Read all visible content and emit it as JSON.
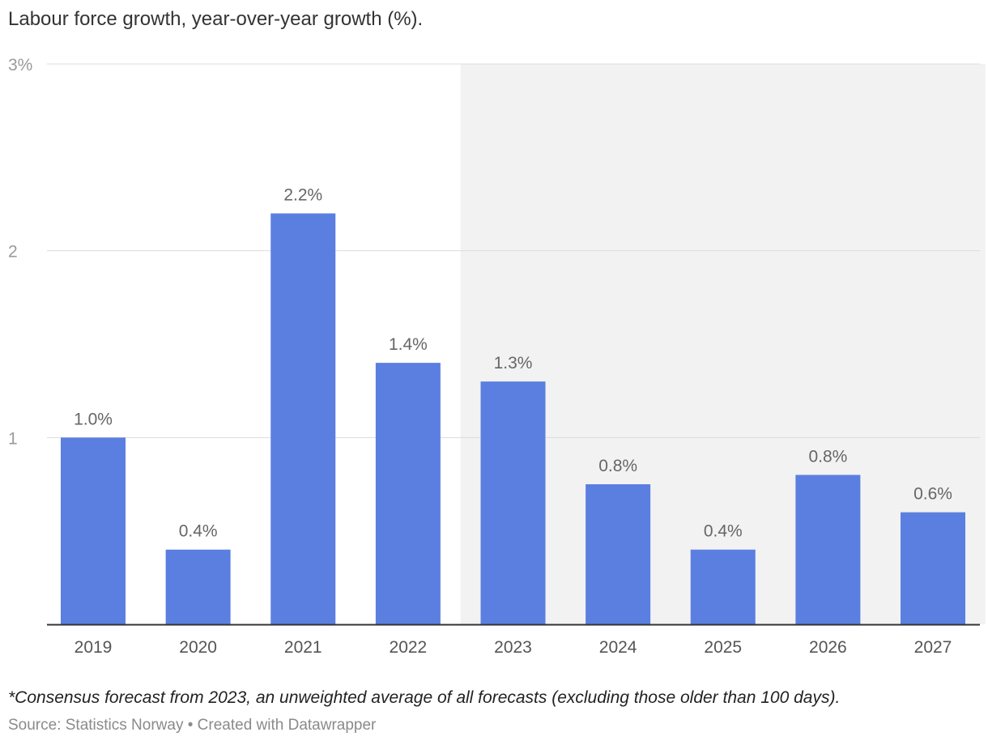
{
  "chart_data": {
    "type": "bar",
    "title": "Labour force growth, year-over-year growth (%).",
    "categories": [
      "2019",
      "2020",
      "2021",
      "2022",
      "2023",
      "2024",
      "2025",
      "2026",
      "2027"
    ],
    "values": [
      1.0,
      0.4,
      2.2,
      1.4,
      1.3,
      0.75,
      0.4,
      0.8,
      0.6
    ],
    "data_labels": [
      "1.0%",
      "0.4%",
      "2.2%",
      "1.4%",
      "1.3%",
      "0.8%",
      "0.4%",
      "0.8%",
      "0.6%"
    ],
    "ylim": [
      0,
      3
    ],
    "yticks": [
      {
        "value": 3,
        "label": "3%"
      },
      {
        "value": 2,
        "label": "2"
      },
      {
        "value": 1,
        "label": "1"
      }
    ],
    "forecast_shaded_from": "2023",
    "grid": true,
    "xlabel": "",
    "ylabel": "",
    "bar_color": "#5b7fe0",
    "forecast_band_color": "#f2f2f2"
  },
  "footnote": "*Consensus forecast from 2023, an unweighted average of all forecasts (excluding those older than 100 days).",
  "source": "Source: Statistics Norway • Created with Datawrapper"
}
